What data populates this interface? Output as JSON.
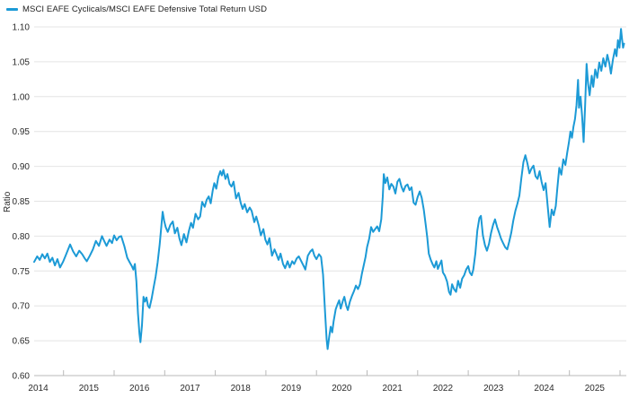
{
  "chart_data": {
    "type": "line",
    "title": "MSCI EAFE Cyclicals/MSCI EAFE Defensive Total Return USD",
    "ylabel": "Ratio",
    "xlabel": "",
    "ylim": [
      0.6,
      1.1
    ],
    "y_tick_values": [
      1.1,
      1.05,
      1.0,
      0.95,
      0.9,
      0.85,
      0.8,
      0.75,
      0.7,
      0.65,
      0.6
    ],
    "y_tick_labels": [
      "1.10",
      "1.05",
      "1.00",
      "0.95",
      "0.90",
      "0.85",
      "0.80",
      "0.75",
      "0.70",
      "0.65",
      "0.60"
    ],
    "x_tick_labels": [
      "2014",
      "2015",
      "2016",
      "2017",
      "2018",
      "2019",
      "2020",
      "2021",
      "2022",
      "2023",
      "2024",
      "2025"
    ],
    "grid": "horizontal-only",
    "legend_position": "top-left",
    "line_color": "#1C9AD6",
    "series": [
      {
        "name": "MSCI EAFE Cyclicals/MSCI EAFE Defensive Total Return USD",
        "points": [
          [
            2014.42,
            0.763
          ],
          [
            2014.48,
            0.771
          ],
          [
            2014.53,
            0.766
          ],
          [
            2014.58,
            0.774
          ],
          [
            2014.63,
            0.768
          ],
          [
            2014.68,
            0.775
          ],
          [
            2014.73,
            0.763
          ],
          [
            2014.78,
            0.769
          ],
          [
            2014.83,
            0.758
          ],
          [
            2014.88,
            0.767
          ],
          [
            2014.93,
            0.755
          ],
          [
            2014.99,
            0.763
          ],
          [
            2015.04,
            0.772
          ],
          [
            2015.09,
            0.781
          ],
          [
            2015.13,
            0.788
          ],
          [
            2015.19,
            0.778
          ],
          [
            2015.25,
            0.771
          ],
          [
            2015.31,
            0.779
          ],
          [
            2015.37,
            0.774
          ],
          [
            2015.42,
            0.768
          ],
          [
            2015.46,
            0.764
          ],
          [
            2015.52,
            0.772
          ],
          [
            2015.58,
            0.781
          ],
          [
            2015.64,
            0.793
          ],
          [
            2015.7,
            0.786
          ],
          [
            2015.76,
            0.8
          ],
          [
            2015.81,
            0.792
          ],
          [
            2015.85,
            0.786
          ],
          [
            2015.91,
            0.795
          ],
          [
            2015.96,
            0.79
          ],
          [
            2016.0,
            0.801
          ],
          [
            2016.05,
            0.794
          ],
          [
            2016.1,
            0.799
          ],
          [
            2016.14,
            0.8
          ],
          [
            2016.2,
            0.786
          ],
          [
            2016.26,
            0.769
          ],
          [
            2016.31,
            0.762
          ],
          [
            2016.35,
            0.757
          ],
          [
            2016.38,
            0.752
          ],
          [
            2016.41,
            0.76
          ],
          [
            2016.44,
            0.735
          ],
          [
            2016.47,
            0.69
          ],
          [
            2016.5,
            0.66
          ],
          [
            2016.52,
            0.648
          ],
          [
            2016.55,
            0.672
          ],
          [
            2016.58,
            0.713
          ],
          [
            2016.61,
            0.706
          ],
          [
            2016.64,
            0.712
          ],
          [
            2016.67,
            0.7
          ],
          [
            2016.7,
            0.697
          ],
          [
            2016.74,
            0.71
          ],
          [
            2016.78,
            0.726
          ],
          [
            2016.82,
            0.742
          ],
          [
            2016.86,
            0.762
          ],
          [
            2016.9,
            0.788
          ],
          [
            2016.93,
            0.812
          ],
          [
            2016.96,
            0.835
          ],
          [
            2016.99,
            0.822
          ],
          [
            2017.02,
            0.813
          ],
          [
            2017.06,
            0.806
          ],
          [
            2017.11,
            0.816
          ],
          [
            2017.16,
            0.821
          ],
          [
            2017.2,
            0.804
          ],
          [
            2017.25,
            0.812
          ],
          [
            2017.29,
            0.797
          ],
          [
            2017.33,
            0.787
          ],
          [
            2017.38,
            0.803
          ],
          [
            2017.43,
            0.791
          ],
          [
            2017.48,
            0.808
          ],
          [
            2017.52,
            0.819
          ],
          [
            2017.56,
            0.812
          ],
          [
            2017.61,
            0.832
          ],
          [
            2017.66,
            0.824
          ],
          [
            2017.7,
            0.828
          ],
          [
            2017.74,
            0.849
          ],
          [
            2017.79,
            0.842
          ],
          [
            2017.83,
            0.852
          ],
          [
            2017.87,
            0.857
          ],
          [
            2017.91,
            0.847
          ],
          [
            2017.95,
            0.866
          ],
          [
            2017.98,
            0.876
          ],
          [
            2018.02,
            0.868
          ],
          [
            2018.06,
            0.885
          ],
          [
            2018.1,
            0.893
          ],
          [
            2018.13,
            0.887
          ],
          [
            2018.16,
            0.895
          ],
          [
            2018.2,
            0.882
          ],
          [
            2018.24,
            0.889
          ],
          [
            2018.28,
            0.875
          ],
          [
            2018.32,
            0.871
          ],
          [
            2018.36,
            0.878
          ],
          [
            2018.41,
            0.854
          ],
          [
            2018.46,
            0.862
          ],
          [
            2018.5,
            0.848
          ],
          [
            2018.54,
            0.839
          ],
          [
            2018.58,
            0.846
          ],
          [
            2018.63,
            0.834
          ],
          [
            2018.68,
            0.841
          ],
          [
            2018.72,
            0.836
          ],
          [
            2018.77,
            0.82
          ],
          [
            2018.81,
            0.828
          ],
          [
            2018.86,
            0.815
          ],
          [
            2018.9,
            0.801
          ],
          [
            2018.95,
            0.81
          ],
          [
            2018.99,
            0.795
          ],
          [
            2019.03,
            0.788
          ],
          [
            2019.07,
            0.797
          ],
          [
            2019.12,
            0.772
          ],
          [
            2019.17,
            0.781
          ],
          [
            2019.21,
            0.774
          ],
          [
            2019.25,
            0.766
          ],
          [
            2019.29,
            0.775
          ],
          [
            2019.34,
            0.76
          ],
          [
            2019.38,
            0.754
          ],
          [
            2019.43,
            0.764
          ],
          [
            2019.47,
            0.755
          ],
          [
            2019.52,
            0.764
          ],
          [
            2019.56,
            0.76
          ],
          [
            2019.61,
            0.768
          ],
          [
            2019.65,
            0.771
          ],
          [
            2019.7,
            0.764
          ],
          [
            2019.74,
            0.758
          ],
          [
            2019.78,
            0.752
          ],
          [
            2019.83,
            0.772
          ],
          [
            2019.88,
            0.778
          ],
          [
            2019.92,
            0.781
          ],
          [
            2019.96,
            0.772
          ],
          [
            2020.0,
            0.767
          ],
          [
            2020.05,
            0.774
          ],
          [
            2020.09,
            0.77
          ],
          [
            2020.13,
            0.745
          ],
          [
            2020.17,
            0.69
          ],
          [
            2020.2,
            0.652
          ],
          [
            2020.22,
            0.638
          ],
          [
            2020.25,
            0.655
          ],
          [
            2020.28,
            0.67
          ],
          [
            2020.31,
            0.662
          ],
          [
            2020.34,
            0.678
          ],
          [
            2020.38,
            0.695
          ],
          [
            2020.42,
            0.703
          ],
          [
            2020.45,
            0.708
          ],
          [
            2020.48,
            0.696
          ],
          [
            2020.52,
            0.707
          ],
          [
            2020.55,
            0.713
          ],
          [
            2020.59,
            0.7
          ],
          [
            2020.62,
            0.694
          ],
          [
            2020.66,
            0.706
          ],
          [
            2020.7,
            0.714
          ],
          [
            2020.74,
            0.721
          ],
          [
            2020.78,
            0.729
          ],
          [
            2020.82,
            0.724
          ],
          [
            2020.86,
            0.731
          ],
          [
            2020.9,
            0.747
          ],
          [
            2020.93,
            0.757
          ],
          [
            2020.97,
            0.77
          ],
          [
            2021.0,
            0.784
          ],
          [
            2021.04,
            0.796
          ],
          [
            2021.08,
            0.813
          ],
          [
            2021.12,
            0.806
          ],
          [
            2021.16,
            0.81
          ],
          [
            2021.2,
            0.814
          ],
          [
            2021.24,
            0.807
          ],
          [
            2021.28,
            0.824
          ],
          [
            2021.31,
            0.857
          ],
          [
            2021.33,
            0.889
          ],
          [
            2021.36,
            0.876
          ],
          [
            2021.4,
            0.884
          ],
          [
            2021.44,
            0.867
          ],
          [
            2021.48,
            0.875
          ],
          [
            2021.52,
            0.871
          ],
          [
            2021.56,
            0.861
          ],
          [
            2021.6,
            0.878
          ],
          [
            2021.64,
            0.882
          ],
          [
            2021.68,
            0.871
          ],
          [
            2021.72,
            0.864
          ],
          [
            2021.76,
            0.872
          ],
          [
            2021.8,
            0.874
          ],
          [
            2021.84,
            0.866
          ],
          [
            2021.88,
            0.87
          ],
          [
            2021.92,
            0.848
          ],
          [
            2021.96,
            0.845
          ],
          [
            2022.0,
            0.856
          ],
          [
            2022.04,
            0.864
          ],
          [
            2022.08,
            0.855
          ],
          [
            2022.12,
            0.838
          ],
          [
            2022.16,
            0.816
          ],
          [
            2022.19,
            0.798
          ],
          [
            2022.22,
            0.775
          ],
          [
            2022.26,
            0.766
          ],
          [
            2022.3,
            0.759
          ],
          [
            2022.33,
            0.755
          ],
          [
            2022.37,
            0.764
          ],
          [
            2022.4,
            0.753
          ],
          [
            2022.44,
            0.76
          ],
          [
            2022.47,
            0.765
          ],
          [
            2022.5,
            0.748
          ],
          [
            2022.54,
            0.743
          ],
          [
            2022.58,
            0.735
          ],
          [
            2022.62,
            0.72
          ],
          [
            2022.65,
            0.716
          ],
          [
            2022.68,
            0.731
          ],
          [
            2022.72,
            0.724
          ],
          [
            2022.76,
            0.72
          ],
          [
            2022.8,
            0.736
          ],
          [
            2022.84,
            0.726
          ],
          [
            2022.88,
            0.739
          ],
          [
            2022.92,
            0.744
          ],
          [
            2022.96,
            0.752
          ],
          [
            2023.0,
            0.757
          ],
          [
            2023.03,
            0.748
          ],
          [
            2023.07,
            0.744
          ],
          [
            2023.1,
            0.752
          ],
          [
            2023.14,
            0.775
          ],
          [
            2023.18,
            0.808
          ],
          [
            2023.22,
            0.826
          ],
          [
            2023.25,
            0.829
          ],
          [
            2023.29,
            0.801
          ],
          [
            2023.33,
            0.787
          ],
          [
            2023.37,
            0.779
          ],
          [
            2023.41,
            0.789
          ],
          [
            2023.45,
            0.804
          ],
          [
            2023.49,
            0.816
          ],
          [
            2023.53,
            0.824
          ],
          [
            2023.57,
            0.813
          ],
          [
            2023.61,
            0.805
          ],
          [
            2023.65,
            0.796
          ],
          [
            2023.69,
            0.79
          ],
          [
            2023.73,
            0.784
          ],
          [
            2023.77,
            0.781
          ],
          [
            2023.81,
            0.792
          ],
          [
            2023.85,
            0.805
          ],
          [
            2023.89,
            0.822
          ],
          [
            2023.93,
            0.836
          ],
          [
            2023.97,
            0.846
          ],
          [
            2024.01,
            0.858
          ],
          [
            2024.05,
            0.883
          ],
          [
            2024.09,
            0.906
          ],
          [
            2024.13,
            0.916
          ],
          [
            2024.17,
            0.904
          ],
          [
            2024.21,
            0.89
          ],
          [
            2024.25,
            0.897
          ],
          [
            2024.29,
            0.901
          ],
          [
            2024.33,
            0.886
          ],
          [
            2024.37,
            0.882
          ],
          [
            2024.41,
            0.893
          ],
          [
            2024.45,
            0.878
          ],
          [
            2024.49,
            0.866
          ],
          [
            2024.53,
            0.876
          ],
          [
            2024.57,
            0.843
          ],
          [
            2024.61,
            0.813
          ],
          [
            2024.65,
            0.838
          ],
          [
            2024.69,
            0.83
          ],
          [
            2024.73,
            0.843
          ],
          [
            2024.76,
            0.868
          ],
          [
            2024.8,
            0.898
          ],
          [
            2024.84,
            0.888
          ],
          [
            2024.88,
            0.91
          ],
          [
            2024.92,
            0.902
          ],
          [
            2024.96,
            0.921
          ],
          [
            2024.99,
            0.934
          ],
          [
            2025.02,
            0.95
          ],
          [
            2025.05,
            0.941
          ],
          [
            2025.08,
            0.957
          ],
          [
            2025.11,
            0.968
          ],
          [
            2025.14,
            0.988
          ],
          [
            2025.17,
            1.024
          ],
          [
            2025.19,
            0.984
          ],
          [
            2025.22,
            1.0
          ],
          [
            2025.25,
            0.972
          ],
          [
            2025.28,
            0.935
          ],
          [
            2025.31,
            0.988
          ],
          [
            2025.34,
            1.047
          ],
          [
            2025.37,
            1.018
          ],
          [
            2025.4,
            1.002
          ],
          [
            2025.44,
            1.03
          ],
          [
            2025.47,
            1.014
          ],
          [
            2025.51,
            1.039
          ],
          [
            2025.55,
            1.027
          ],
          [
            2025.59,
            1.049
          ],
          [
            2025.63,
            1.037
          ],
          [
            2025.67,
            1.055
          ],
          [
            2025.71,
            1.043
          ],
          [
            2025.75,
            1.06
          ],
          [
            2025.79,
            1.047
          ],
          [
            2025.82,
            1.033
          ],
          [
            2025.86,
            1.053
          ],
          [
            2025.9,
            1.068
          ],
          [
            2025.93,
            1.058
          ],
          [
            2025.96,
            1.081
          ],
          [
            2025.99,
            1.07
          ],
          [
            2026.02,
            1.097
          ],
          [
            2026.04,
            1.082
          ],
          [
            2026.06,
            1.07
          ],
          [
            2026.08,
            1.076
          ]
        ]
      }
    ]
  }
}
